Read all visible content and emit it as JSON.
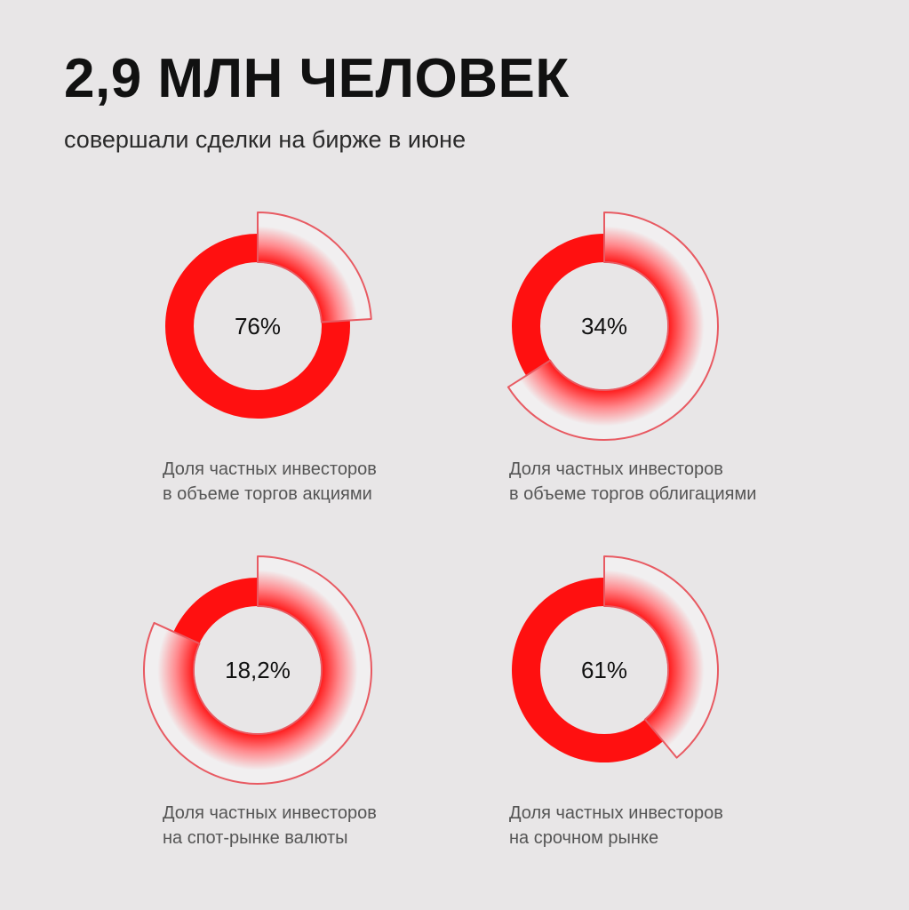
{
  "header": {
    "title": "2,9 МЛН ЧЕЛОВЕК",
    "subtitle": "совершали сделки на бирже в июне"
  },
  "colors": {
    "background": "#e8e6e7",
    "accent_red": "#ff1010",
    "outline_red": "#e85a62",
    "glass": "#f1eff0"
  },
  "chart_data": [
    {
      "type": "pie",
      "variant": "donut",
      "value_percent": 76,
      "label": "76%",
      "caption": [
        "Доля частных инвесторов",
        "в объеме торгов акциями"
      ]
    },
    {
      "type": "pie",
      "variant": "donut",
      "value_percent": 34,
      "label": "34%",
      "caption": [
        "Доля частных инвесторов",
        "в объеме торгов облигациями"
      ]
    },
    {
      "type": "pie",
      "variant": "donut",
      "value_percent": 18.2,
      "label": "18,2%",
      "caption": [
        "Доля частных инвесторов",
        "на спот-рынке валюты"
      ]
    },
    {
      "type": "pie",
      "variant": "donut",
      "value_percent": 61,
      "label": "61%",
      "caption": [
        "Доля частных инвесторов",
        "на срочном рынке"
      ]
    }
  ]
}
